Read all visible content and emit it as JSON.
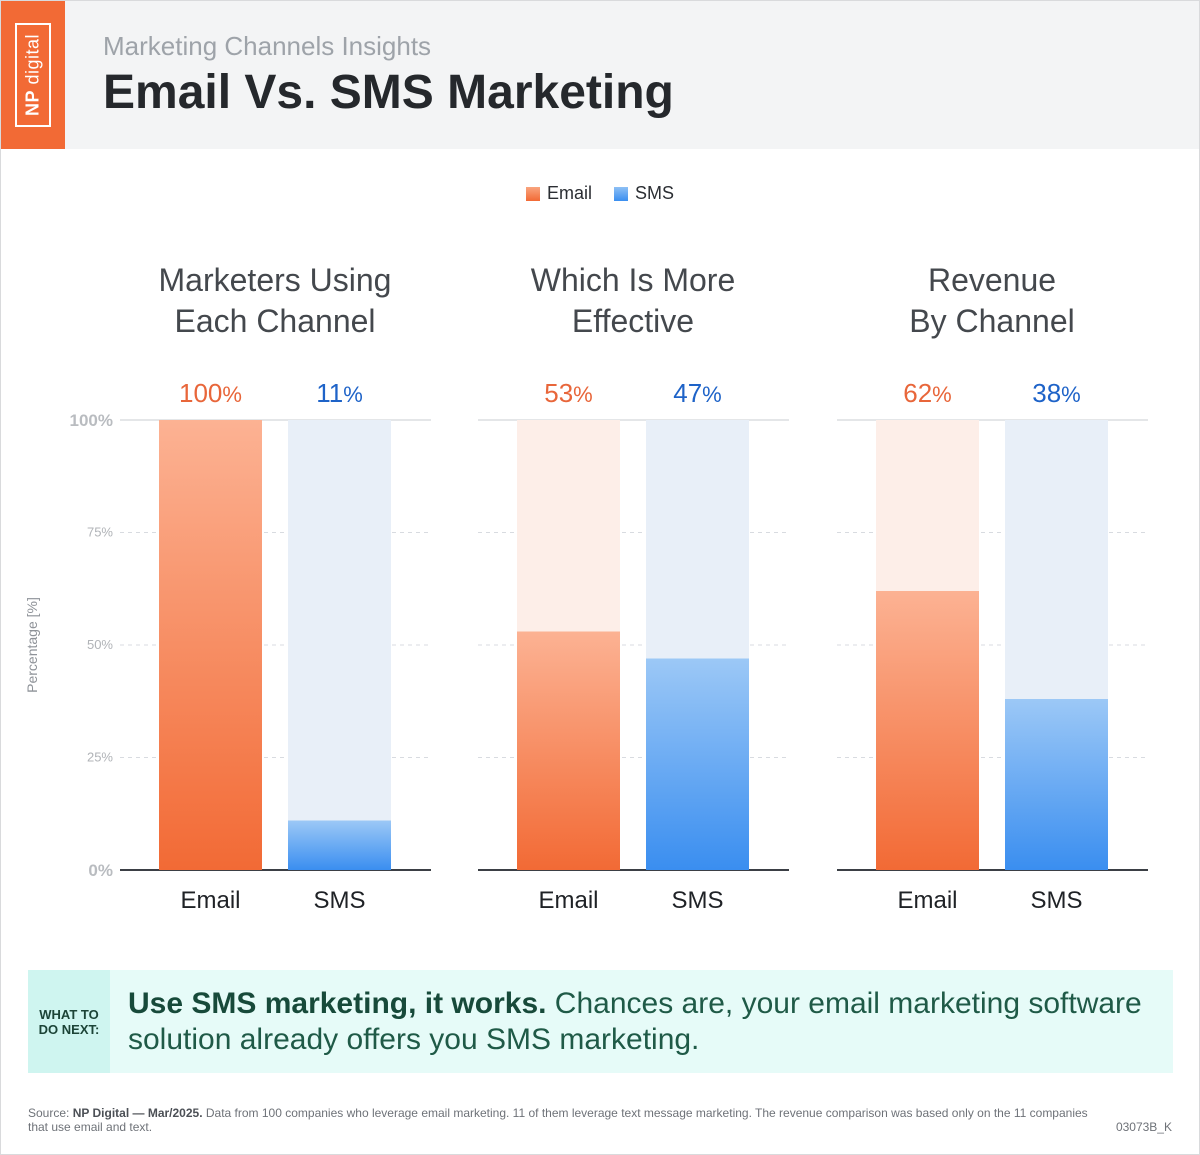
{
  "header": {
    "logo_text_np": "NP",
    "logo_text_digital": "digital",
    "subtitle": "Marketing Channels Insights",
    "title": "Email Vs. SMS Marketing"
  },
  "colors": {
    "email": "#f26a35",
    "email_light": "#fdeee8",
    "sms": "#3a8ef0",
    "sms_light": "#e8eff8",
    "email_label": "#e8663a",
    "sms_label": "#1e63c8"
  },
  "chart_data": {
    "type": "bar",
    "legend": [
      "Email",
      "SMS"
    ],
    "legend_position": "top-center",
    "ylabel": "Percentage [%]",
    "ylim": [
      0,
      100
    ],
    "yticks": [
      "0%",
      "25%",
      "50%",
      "75%",
      "100%"
    ],
    "grid": true,
    "panels": [
      {
        "title_line1": "Marketers Using",
        "title_line2": "Each Channel",
        "categories": [
          "Email",
          "SMS"
        ],
        "values": [
          100,
          11
        ]
      },
      {
        "title_line1": "Which Is More",
        "title_line2": "Effective",
        "categories": [
          "Email",
          "SMS"
        ],
        "values": [
          53,
          47
        ]
      },
      {
        "title_line1": "Revenue",
        "title_line2": "By Channel",
        "categories": [
          "Email",
          "SMS"
        ],
        "values": [
          62,
          38
        ]
      }
    ]
  },
  "cta": {
    "label_line1": "WHAT TO",
    "label_line2": "DO NEXT:",
    "headline": "Use SMS marketing, it works.",
    "body": " Chances are, your email marketing software solution already offers you SMS marketing."
  },
  "footer": {
    "source_prefix": "Source: ",
    "source_name": "NP Digital — Mar/2025.",
    "source_text": " Data from 100 companies who leverage email marketing. 11 of them leverage text message marketing. The revenue comparison was based only on the 11 companies that use email and text.",
    "code": "03073B_K"
  }
}
